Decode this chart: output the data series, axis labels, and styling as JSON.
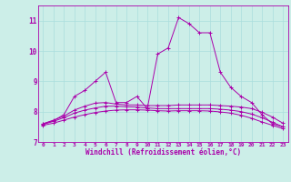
{
  "xlabel": "Windchill (Refroidissement éolien,°C)",
  "bg_color": "#cceee8",
  "grid_color": "#aadddd",
  "line_color": "#aa00aa",
  "xlim": [
    -0.5,
    23.5
  ],
  "ylim": [
    7.0,
    11.5
  ],
  "yticks": [
    7,
    8,
    9,
    10,
    11
  ],
  "xticks": [
    0,
    1,
    2,
    3,
    4,
    5,
    6,
    7,
    8,
    9,
    10,
    11,
    12,
    13,
    14,
    15,
    16,
    17,
    18,
    19,
    20,
    21,
    22,
    23
  ],
  "x": [
    0,
    1,
    2,
    3,
    4,
    5,
    6,
    7,
    8,
    9,
    10,
    11,
    12,
    13,
    14,
    15,
    16,
    17,
    18,
    19,
    20,
    21,
    22,
    23
  ],
  "line1": [
    7.6,
    7.7,
    7.9,
    8.5,
    8.7,
    9.0,
    9.3,
    8.3,
    8.3,
    8.5,
    8.1,
    9.9,
    10.1,
    11.1,
    10.9,
    10.6,
    10.6,
    9.3,
    8.8,
    8.5,
    8.3,
    7.9,
    7.6,
    7.5
  ],
  "line2": [
    7.6,
    7.72,
    7.85,
    8.05,
    8.18,
    8.28,
    8.3,
    8.25,
    8.22,
    8.22,
    8.2,
    8.2,
    8.2,
    8.22,
    8.22,
    8.22,
    8.22,
    8.2,
    8.18,
    8.15,
    8.1,
    7.98,
    7.82,
    7.62
  ],
  "line3": [
    7.58,
    7.68,
    7.8,
    7.95,
    8.05,
    8.12,
    8.18,
    8.18,
    8.16,
    8.15,
    8.12,
    8.1,
    8.1,
    8.1,
    8.1,
    8.1,
    8.1,
    8.08,
    8.05,
    8.0,
    7.92,
    7.8,
    7.65,
    7.5
  ],
  "line4": [
    7.55,
    7.62,
    7.72,
    7.82,
    7.9,
    7.97,
    8.02,
    8.05,
    8.06,
    8.06,
    8.05,
    8.03,
    8.02,
    8.03,
    8.03,
    8.03,
    8.02,
    7.99,
    7.95,
    7.88,
    7.78,
    7.66,
    7.55,
    7.44
  ]
}
